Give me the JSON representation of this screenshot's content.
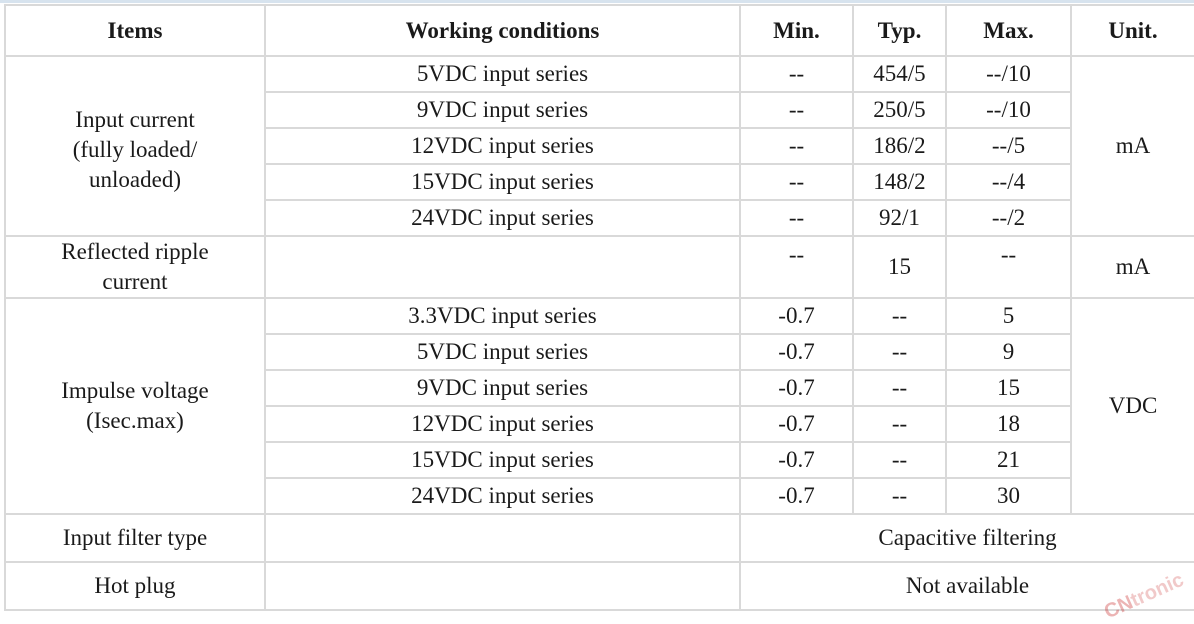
{
  "table": {
    "headers": [
      "Items",
      "Working conditions",
      "Min.",
      "Typ.",
      "Max.",
      "Unit."
    ],
    "input_current": {
      "label_lines": [
        "Input current",
        "(fully loaded/",
        "unloaded)"
      ],
      "unit": "mA",
      "rows": [
        {
          "cond": "5VDC input series",
          "min": "--",
          "typ": "454/5",
          "max": "--/10"
        },
        {
          "cond": "9VDC input series",
          "min": "--",
          "typ": "250/5",
          "max": "--/10"
        },
        {
          "cond": "12VDC input series",
          "min": "--",
          "typ": "186/2",
          "max": "--/5"
        },
        {
          "cond": "15VDC input series",
          "min": "--",
          "typ": "148/2",
          "max": "--/4"
        },
        {
          "cond": "24VDC input series",
          "min": "--",
          "typ": "92/1",
          "max": "--/2"
        }
      ]
    },
    "reflected_ripple": {
      "label_lines": [
        "Reflected ripple",
        "current"
      ],
      "cond": "",
      "min": "--",
      "typ": "15",
      "max": "--",
      "unit": "mA"
    },
    "impulse_voltage": {
      "label_lines": [
        "Impulse voltage",
        "(Isec.max)"
      ],
      "unit": "VDC",
      "rows": [
        {
          "cond": "3.3VDC input series",
          "min": "-0.7",
          "typ": "--",
          "max": "5"
        },
        {
          "cond": "5VDC input series",
          "min": "-0.7",
          "typ": "--",
          "max": "9"
        },
        {
          "cond": "9VDC input series",
          "min": "-0.7",
          "typ": "--",
          "max": "15"
        },
        {
          "cond": "12VDC input series",
          "min": "-0.7",
          "typ": "--",
          "max": "18"
        },
        {
          "cond": "15VDC input series",
          "min": "-0.7",
          "typ": "--",
          "max": "21"
        },
        {
          "cond": "24VDC input series",
          "min": "-0.7",
          "typ": "--",
          "max": "30"
        }
      ]
    },
    "input_filter": {
      "label": "Input filter type",
      "cond": "",
      "value": "Capacitive filtering"
    },
    "hot_plug": {
      "label": "Hot plug",
      "cond": "",
      "value": "Not available"
    }
  },
  "watermark": {
    "prefix": "CN",
    "suffix": "tronic"
  }
}
